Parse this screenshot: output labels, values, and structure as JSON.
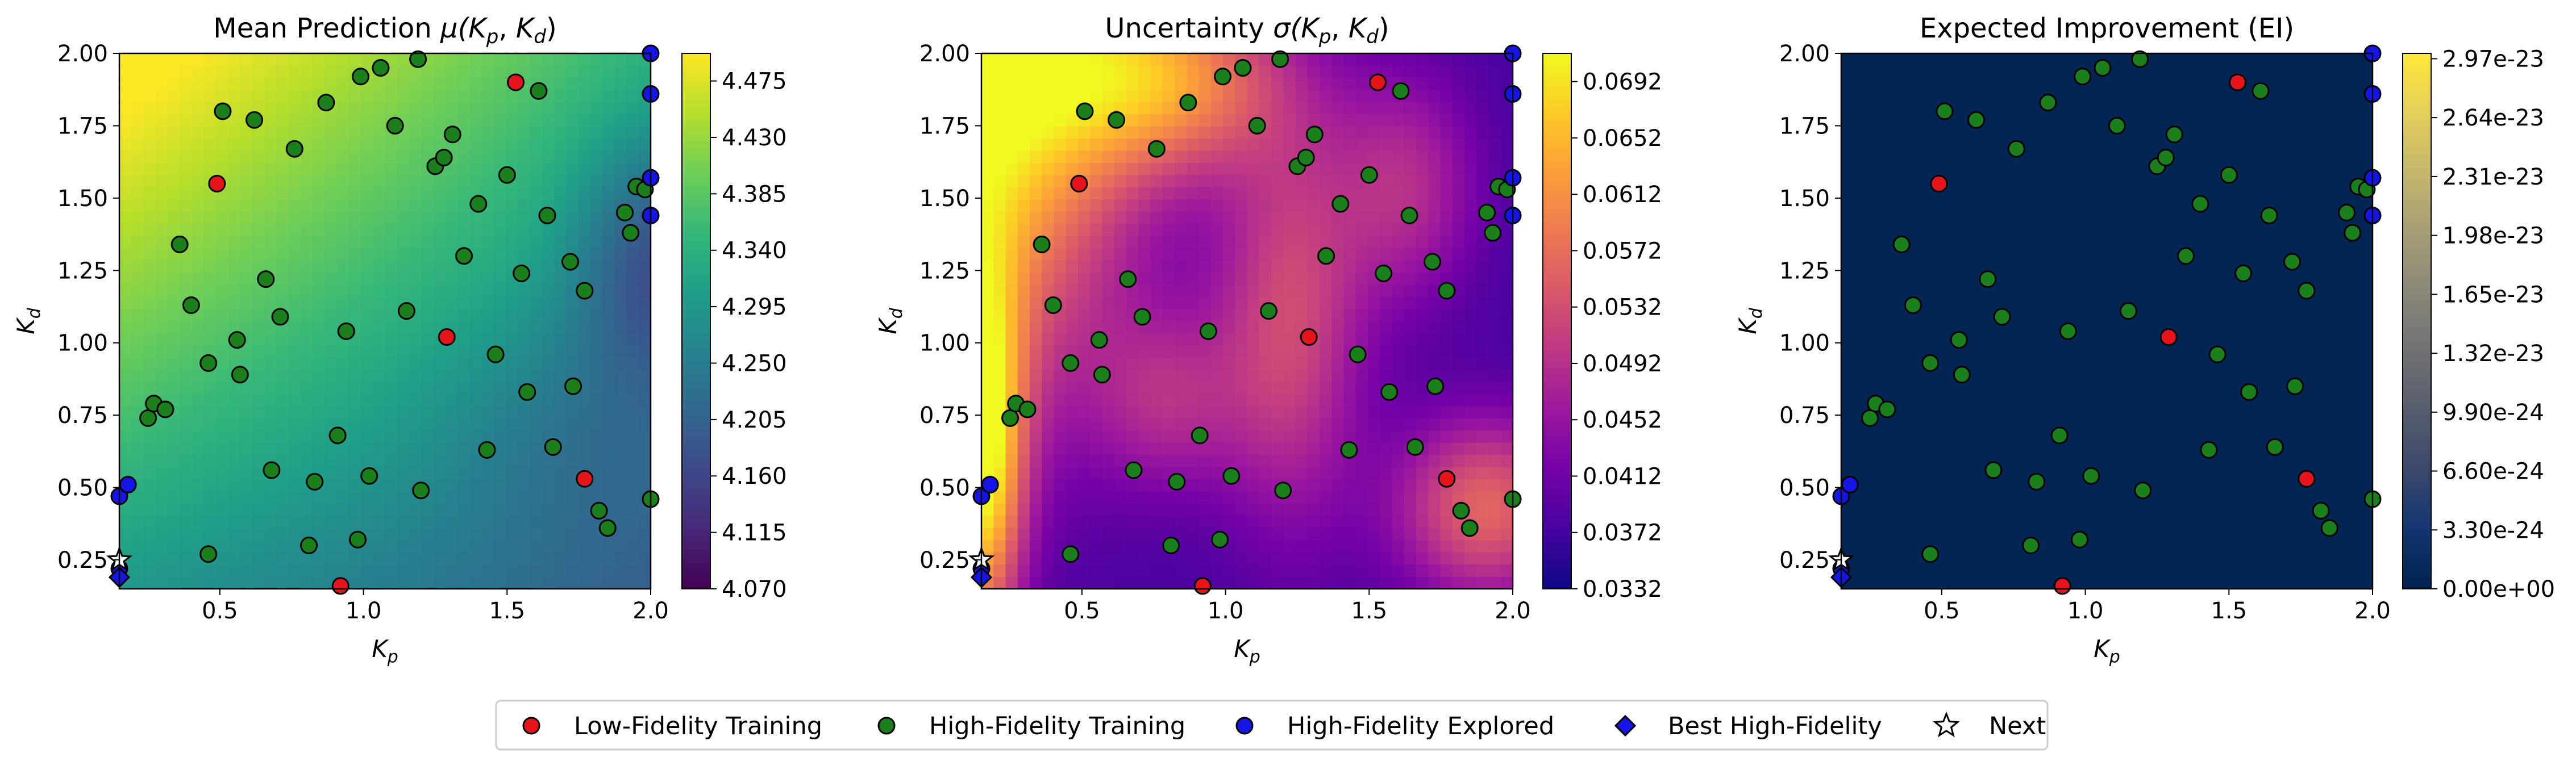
{
  "chart_data": [
    {
      "type": "heatmap",
      "title": "Mean Prediction μ(Kp, Kd)",
      "title_parts": [
        "Mean Prediction ",
        "μ(",
        "K",
        "p",
        ", ",
        "K",
        "d",
        ")"
      ],
      "xlabel": "Kp",
      "ylabel": "Kd",
      "xlim": [
        0.15,
        2.0
      ],
      "ylim": [
        0.15,
        2.0
      ],
      "xticks": [
        "0.5",
        "1.0",
        "1.5",
        "2.0"
      ],
      "yticks": [
        "0.25",
        "0.50",
        "0.75",
        "1.00",
        "1.25",
        "1.50",
        "1.75",
        "2.00"
      ],
      "colormap": "viridis",
      "colorbar_range": [
        4.07,
        4.497
      ],
      "colorbar_ticks": [
        "4.070",
        "4.115",
        "4.160",
        "4.205",
        "4.250",
        "4.295",
        "4.340",
        "4.385",
        "4.430",
        "4.475"
      ]
    },
    {
      "type": "heatmap",
      "title": "Uncertainty σ(Kp, Kd)",
      "title_parts": [
        "Uncertainty ",
        "σ(",
        "K",
        "p",
        ", ",
        "K",
        "d",
        ")"
      ],
      "xlabel": "Kp",
      "ylabel": "Kd",
      "xlim": [
        0.15,
        2.0
      ],
      "ylim": [
        0.15,
        2.0
      ],
      "xticks": [
        "0.5",
        "1.0",
        "1.5",
        "2.0"
      ],
      "yticks": [
        "0.25",
        "0.50",
        "0.75",
        "1.00",
        "1.25",
        "1.50",
        "1.75",
        "2.00"
      ],
      "colormap": "plasma",
      "colorbar_range": [
        0.0332,
        0.0712
      ],
      "colorbar_ticks": [
        "0.0332",
        "0.0372",
        "0.0412",
        "0.0452",
        "0.0492",
        "0.0532",
        "0.0572",
        "0.0612",
        "0.0652",
        "0.0692"
      ]
    },
    {
      "type": "heatmap",
      "title": "Expected Improvement (EI)",
      "xlabel": "Kp",
      "ylabel": "Kd",
      "xlim": [
        0.15,
        2.0
      ],
      "ylim": [
        0.15,
        2.0
      ],
      "xticks": [
        "0.5",
        "1.0",
        "1.5",
        "2.0"
      ],
      "yticks": [
        "0.25",
        "0.50",
        "0.75",
        "1.00",
        "1.25",
        "1.50",
        "1.75",
        "2.00"
      ],
      "colormap": "cividis",
      "colorbar_range": [
        0.0,
        3e-23
      ],
      "colorbar_ticks": [
        "0.00e+00",
        "3.30e-24",
        "6.60e-24",
        "9.90e-24",
        "1.32e-23",
        "1.65e-23",
        "1.98e-23",
        "2.31e-23",
        "2.64e-23",
        "2.97e-23"
      ]
    }
  ],
  "points": {
    "low_fidelity": [
      [
        0.49,
        1.55
      ],
      [
        1.53,
        1.9
      ],
      [
        1.29,
        1.02
      ],
      [
        1.77,
        0.53
      ],
      [
        0.92,
        0.16
      ]
    ],
    "high_fidelity": [
      [
        0.25,
        0.74
      ],
      [
        0.27,
        0.79
      ],
      [
        0.31,
        0.77
      ],
      [
        0.36,
        1.34
      ],
      [
        0.4,
        1.13
      ],
      [
        0.46,
        0.93
      ],
      [
        0.46,
        0.27
      ],
      [
        0.51,
        1.8
      ],
      [
        0.56,
        1.01
      ],
      [
        0.57,
        0.89
      ],
      [
        0.62,
        1.77
      ],
      [
        0.66,
        1.22
      ],
      [
        0.68,
        0.56
      ],
      [
        0.71,
        1.09
      ],
      [
        0.76,
        1.67
      ],
      [
        0.81,
        0.3
      ],
      [
        0.83,
        0.52
      ],
      [
        0.87,
        1.83
      ],
      [
        0.91,
        0.68
      ],
      [
        0.94,
        1.04
      ],
      [
        0.98,
        0.32
      ],
      [
        0.99,
        1.92
      ],
      [
        1.02,
        0.54
      ],
      [
        1.06,
        1.95
      ],
      [
        1.11,
        1.75
      ],
      [
        1.15,
        1.11
      ],
      [
        1.19,
        1.98
      ],
      [
        1.2,
        0.49
      ],
      [
        1.25,
        1.61
      ],
      [
        1.28,
        1.64
      ],
      [
        1.31,
        1.72
      ],
      [
        1.35,
        1.3
      ],
      [
        1.4,
        1.48
      ],
      [
        1.43,
        0.63
      ],
      [
        1.46,
        0.96
      ],
      [
        1.5,
        1.58
      ],
      [
        1.55,
        1.24
      ],
      [
        1.57,
        0.83
      ],
      [
        1.61,
        1.87
      ],
      [
        1.64,
        1.44
      ],
      [
        1.66,
        0.64
      ],
      [
        1.72,
        1.28
      ],
      [
        1.73,
        0.85
      ],
      [
        1.77,
        1.18
      ],
      [
        1.82,
        0.42
      ],
      [
        1.85,
        0.36
      ],
      [
        1.91,
        1.45
      ],
      [
        1.93,
        1.38
      ],
      [
        1.95,
        1.54
      ],
      [
        1.98,
        1.53
      ],
      [
        2.0,
        0.46
      ]
    ],
    "high_fidelity_explored": [
      [
        0.15,
        0.47
      ],
      [
        0.18,
        0.51
      ],
      [
        0.15,
        0.22
      ],
      [
        2.0,
        1.86
      ],
      [
        2.0,
        1.57
      ],
      [
        2.0,
        1.44
      ],
      [
        2.0,
        2.0
      ]
    ],
    "best_high_fidelity": [
      [
        0.15,
        0.19
      ]
    ],
    "next": [
      [
        0.15,
        0.25
      ]
    ]
  },
  "legend": [
    {
      "label": "Low-Fidelity Training",
      "marker": "circle",
      "color": "#e8141c"
    },
    {
      "label": "High-Fidelity Training",
      "marker": "circle",
      "color": "#1b7f1b"
    },
    {
      "label": "High-Fidelity Explored",
      "marker": "circle",
      "color": "#1515e6"
    },
    {
      "label": "Best High-Fidelity",
      "marker": "diamond",
      "color": "#1515e6"
    },
    {
      "label": "Next",
      "marker": "star",
      "color": "#ffffff"
    }
  ],
  "colors": {
    "low_fidelity": "#e8141c",
    "high_fidelity": "#1b7f1b",
    "explored": "#1515e6",
    "marker_edge": "#000000"
  }
}
